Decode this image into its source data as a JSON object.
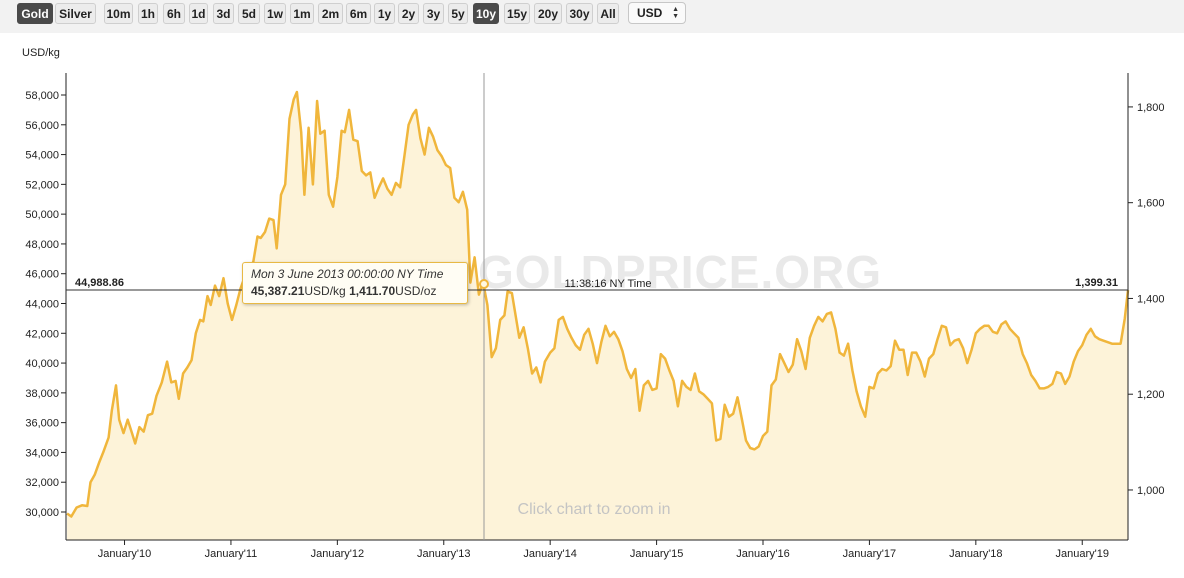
{
  "toolbar": {
    "metal_buttons": [
      {
        "label": "Gold",
        "active": true
      },
      {
        "label": "Silver",
        "active": false
      }
    ],
    "range_buttons": [
      {
        "label": "10m",
        "active": false
      },
      {
        "label": "1h",
        "active": false
      },
      {
        "label": "6h",
        "active": false
      },
      {
        "label": "1d",
        "active": false
      },
      {
        "label": "3d",
        "active": false
      },
      {
        "label": "5d",
        "active": false
      },
      {
        "label": "1w",
        "active": false
      },
      {
        "label": "1m",
        "active": false
      },
      {
        "label": "2m",
        "active": false
      },
      {
        "label": "6m",
        "active": false
      },
      {
        "label": "1y",
        "active": false
      },
      {
        "label": "2y",
        "active": false
      },
      {
        "label": "3y",
        "active": false
      },
      {
        "label": "5y",
        "active": false
      },
      {
        "label": "10y",
        "active": true
      },
      {
        "label": "15y",
        "active": false
      },
      {
        "label": "20y",
        "active": false
      },
      {
        "label": "30y",
        "active": false
      },
      {
        "label": "All",
        "active": false
      }
    ],
    "currency": "USD"
  },
  "chart": {
    "watermark": "GOLDPRICE.ORG",
    "zoom_hint": "Click chart to zoom in",
    "crosshair_left_value": "44,988.86",
    "crosshair_right_value": "1,399.31",
    "crosshair_time": "11:38:16 NY Time",
    "tooltip": {
      "date": "Mon 3 June 2013 00:00:00 NY Time",
      "kg_value": "45,387.21",
      "kg_unit": "USD/kg",
      "oz_value": "1,411.70",
      "oz_unit": "USD/oz"
    },
    "colors": {
      "line": "#f0b63c",
      "fill": "#fdf3d9",
      "crosshair": "#333333"
    }
  },
  "chart_data": {
    "type": "area",
    "ylabel": "USD/kg",
    "y_left_ticks": [
      "30,000",
      "32,000",
      "34,000",
      "36,000",
      "38,000",
      "40,000",
      "42,000",
      "44,000",
      "46,000",
      "48,000",
      "50,000",
      "52,000",
      "54,000",
      "56,000",
      "58,000"
    ],
    "y_left_range": [
      29000,
      59250
    ],
    "y_right_ticks": [
      "1,000",
      "1,200",
      "1,400",
      "1,600",
      "1,800"
    ],
    "y_right_values": [
      1000,
      1200,
      1400,
      1600,
      1800
    ],
    "y_right_unit": "USD/oz",
    "x_ticks": [
      "January'10",
      "January'11",
      "January'12",
      "January'13",
      "January'14",
      "January'15",
      "January'16",
      "January'17",
      "January'18",
      "January'19"
    ],
    "x_range": [
      2009.45,
      2019.43
    ],
    "series": [
      {
        "values": [
          [
            2009.46,
            29900
          ],
          [
            2009.5,
            29700
          ],
          [
            2009.55,
            30300
          ],
          [
            2009.6,
            30450
          ],
          [
            2009.65,
            30400
          ],
          [
            2009.68,
            32000
          ],
          [
            2009.72,
            32500
          ],
          [
            2009.76,
            33300
          ],
          [
            2009.8,
            34000
          ],
          [
            2009.85,
            35000
          ],
          [
            2009.88,
            36800
          ],
          [
            2009.92,
            38500
          ],
          [
            2009.95,
            36200
          ],
          [
            2009.99,
            35300
          ],
          [
            2010.03,
            36200
          ],
          [
            2010.07,
            35300
          ],
          [
            2010.1,
            34600
          ],
          [
            2010.14,
            35700
          ],
          [
            2010.18,
            35400
          ],
          [
            2010.22,
            36500
          ],
          [
            2010.26,
            36600
          ],
          [
            2010.3,
            37800
          ],
          [
            2010.35,
            38700
          ],
          [
            2010.4,
            40100
          ],
          [
            2010.44,
            38700
          ],
          [
            2010.48,
            38800
          ],
          [
            2010.51,
            37600
          ],
          [
            2010.55,
            39300
          ],
          [
            2010.59,
            39700
          ],
          [
            2010.63,
            40200
          ],
          [
            2010.67,
            42000
          ],
          [
            2010.71,
            42900
          ],
          [
            2010.74,
            42800
          ],
          [
            2010.78,
            44500
          ],
          [
            2010.81,
            43900
          ],
          [
            2010.85,
            45200
          ],
          [
            2010.89,
            44500
          ],
          [
            2010.93,
            45700
          ],
          [
            2010.97,
            44000
          ],
          [
            2011.01,
            42900
          ],
          [
            2011.05,
            43900
          ],
          [
            2011.09,
            45000
          ],
          [
            2011.13,
            45800
          ],
          [
            2011.17,
            46300
          ],
          [
            2011.21,
            46800
          ],
          [
            2011.25,
            48500
          ],
          [
            2011.28,
            48400
          ],
          [
            2011.32,
            48800
          ],
          [
            2011.36,
            49700
          ],
          [
            2011.4,
            49600
          ],
          [
            2011.43,
            47700
          ],
          [
            2011.47,
            51300
          ],
          [
            2011.51,
            52000
          ],
          [
            2011.55,
            56400
          ],
          [
            2011.59,
            57700
          ],
          [
            2011.62,
            58200
          ],
          [
            2011.66,
            55500
          ],
          [
            2011.69,
            51300
          ],
          [
            2011.73,
            55800
          ],
          [
            2011.77,
            52000
          ],
          [
            2011.81,
            57600
          ],
          [
            2011.84,
            55400
          ],
          [
            2011.88,
            55600
          ],
          [
            2011.92,
            51300
          ],
          [
            2011.96,
            50500
          ],
          [
            2012.0,
            52500
          ],
          [
            2012.04,
            55600
          ],
          [
            2012.07,
            55500
          ],
          [
            2012.11,
            57000
          ],
          [
            2012.15,
            55000
          ],
          [
            2012.19,
            54900
          ],
          [
            2012.23,
            52900
          ],
          [
            2012.27,
            52600
          ],
          [
            2012.31,
            52800
          ],
          [
            2012.35,
            51100
          ],
          [
            2012.39,
            51800
          ],
          [
            2012.43,
            52400
          ],
          [
            2012.47,
            51700
          ],
          [
            2012.51,
            51300
          ],
          [
            2012.55,
            52100
          ],
          [
            2012.59,
            51800
          ],
          [
            2012.63,
            53900
          ],
          [
            2012.67,
            56000
          ],
          [
            2012.71,
            56700
          ],
          [
            2012.74,
            57000
          ],
          [
            2012.78,
            55100
          ],
          [
            2012.82,
            54000
          ],
          [
            2012.86,
            55800
          ],
          [
            2012.9,
            55200
          ],
          [
            2012.94,
            54300
          ],
          [
            2012.98,
            53900
          ],
          [
            2013.02,
            53300
          ],
          [
            2013.06,
            53100
          ],
          [
            2013.1,
            51100
          ],
          [
            2013.14,
            50800
          ],
          [
            2013.18,
            51500
          ],
          [
            2013.22,
            50300
          ],
          [
            2013.25,
            45400
          ],
          [
            2013.29,
            47100
          ],
          [
            2013.33,
            44600
          ],
          [
            2013.37,
            45400
          ],
          [
            2013.41,
            43900
          ],
          [
            2013.45,
            40400
          ],
          [
            2013.49,
            41000
          ],
          [
            2013.53,
            42900
          ],
          [
            2013.57,
            43200
          ],
          [
            2013.6,
            44800
          ],
          [
            2013.64,
            44700
          ],
          [
            2013.68,
            43000
          ],
          [
            2013.71,
            41700
          ],
          [
            2013.75,
            42400
          ],
          [
            2013.79,
            41000
          ],
          [
            2013.83,
            39300
          ],
          [
            2013.87,
            39700
          ],
          [
            2013.91,
            38700
          ],
          [
            2013.95,
            40100
          ],
          [
            2014.0,
            40700
          ],
          [
            2014.04,
            41000
          ],
          [
            2014.08,
            42900
          ],
          [
            2014.12,
            43100
          ],
          [
            2014.16,
            42300
          ],
          [
            2014.2,
            41700
          ],
          [
            2014.24,
            41200
          ],
          [
            2014.28,
            40900
          ],
          [
            2014.32,
            41900
          ],
          [
            2014.36,
            42300
          ],
          [
            2014.4,
            41300
          ],
          [
            2014.44,
            40000
          ],
          [
            2014.48,
            41400
          ],
          [
            2014.52,
            42500
          ],
          [
            2014.56,
            41800
          ],
          [
            2014.6,
            42100
          ],
          [
            2014.64,
            41600
          ],
          [
            2014.68,
            40800
          ],
          [
            2014.72,
            39600
          ],
          [
            2014.76,
            39000
          ],
          [
            2014.8,
            39600
          ],
          [
            2014.84,
            36800
          ],
          [
            2014.88,
            38500
          ],
          [
            2014.92,
            38800
          ],
          [
            2014.96,
            38200
          ],
          [
            2015.0,
            38300
          ],
          [
            2015.04,
            40600
          ],
          [
            2015.08,
            40300
          ],
          [
            2015.12,
            39500
          ],
          [
            2015.16,
            38800
          ],
          [
            2015.2,
            37100
          ],
          [
            2015.24,
            38800
          ],
          [
            2015.28,
            38400
          ],
          [
            2015.32,
            38200
          ],
          [
            2015.36,
            39300
          ],
          [
            2015.4,
            38100
          ],
          [
            2015.44,
            37900
          ],
          [
            2015.48,
            37600
          ],
          [
            2015.52,
            37300
          ],
          [
            2015.56,
            34800
          ],
          [
            2015.6,
            34900
          ],
          [
            2015.64,
            37200
          ],
          [
            2015.68,
            36400
          ],
          [
            2015.72,
            36600
          ],
          [
            2015.76,
            37700
          ],
          [
            2015.8,
            36300
          ],
          [
            2015.84,
            34800
          ],
          [
            2015.88,
            34300
          ],
          [
            2015.92,
            34200
          ],
          [
            2015.96,
            34400
          ],
          [
            2016.0,
            35100
          ],
          [
            2016.04,
            35400
          ],
          [
            2016.08,
            38500
          ],
          [
            2016.12,
            38900
          ],
          [
            2016.16,
            40600
          ],
          [
            2016.2,
            40000
          ],
          [
            2016.24,
            39400
          ],
          [
            2016.28,
            39900
          ],
          [
            2016.32,
            41600
          ],
          [
            2016.36,
            40800
          ],
          [
            2016.4,
            39600
          ],
          [
            2016.44,
            41700
          ],
          [
            2016.48,
            42500
          ],
          [
            2016.52,
            43100
          ],
          [
            2016.56,
            42800
          ],
          [
            2016.6,
            43300
          ],
          [
            2016.64,
            43400
          ],
          [
            2016.68,
            42300
          ],
          [
            2016.72,
            40700
          ],
          [
            2016.76,
            40500
          ],
          [
            2016.8,
            41300
          ],
          [
            2016.84,
            39500
          ],
          [
            2016.88,
            38100
          ],
          [
            2016.92,
            37100
          ],
          [
            2016.96,
            36400
          ],
          [
            2017.0,
            38400
          ],
          [
            2017.04,
            38300
          ],
          [
            2017.08,
            39300
          ],
          [
            2017.12,
            39600
          ],
          [
            2017.16,
            39500
          ],
          [
            2017.2,
            39800
          ],
          [
            2017.24,
            41500
          ],
          [
            2017.28,
            40900
          ],
          [
            2017.32,
            40900
          ],
          [
            2017.36,
            39200
          ],
          [
            2017.4,
            40700
          ],
          [
            2017.44,
            40700
          ],
          [
            2017.48,
            40100
          ],
          [
            2017.52,
            39100
          ],
          [
            2017.56,
            40300
          ],
          [
            2017.6,
            40600
          ],
          [
            2017.64,
            41600
          ],
          [
            2017.68,
            42500
          ],
          [
            2017.72,
            42400
          ],
          [
            2017.76,
            41200
          ],
          [
            2017.8,
            41500
          ],
          [
            2017.84,
            41600
          ],
          [
            2017.88,
            41000
          ],
          [
            2017.92,
            40000
          ],
          [
            2017.96,
            40900
          ],
          [
            2018.0,
            42000
          ],
          [
            2018.04,
            42300
          ],
          [
            2018.08,
            42500
          ],
          [
            2018.12,
            42500
          ],
          [
            2018.16,
            42100
          ],
          [
            2018.2,
            42000
          ],
          [
            2018.24,
            42600
          ],
          [
            2018.28,
            42800
          ],
          [
            2018.32,
            42300
          ],
          [
            2018.36,
            42000
          ],
          [
            2018.4,
            41700
          ],
          [
            2018.44,
            40600
          ],
          [
            2018.48,
            40000
          ],
          [
            2018.52,
            39200
          ],
          [
            2018.56,
            38800
          ],
          [
            2018.6,
            38300
          ],
          [
            2018.64,
            38300
          ],
          [
            2018.68,
            38400
          ],
          [
            2018.72,
            38600
          ],
          [
            2018.76,
            39400
          ],
          [
            2018.8,
            39300
          ],
          [
            2018.84,
            38600
          ],
          [
            2018.88,
            39100
          ],
          [
            2018.92,
            40100
          ],
          [
            2018.96,
            40800
          ],
          [
            2019.0,
            41200
          ],
          [
            2019.04,
            41900
          ],
          [
            2019.08,
            42300
          ],
          [
            2019.12,
            41800
          ],
          [
            2019.16,
            41600
          ],
          [
            2019.2,
            41500
          ],
          [
            2019.24,
            41400
          ],
          [
            2019.28,
            41300
          ],
          [
            2019.32,
            41300
          ],
          [
            2019.36,
            41300
          ],
          [
            2019.4,
            43000
          ],
          [
            2019.43,
            44900
          ]
        ]
      }
    ],
    "grid": false,
    "legend": "none"
  }
}
